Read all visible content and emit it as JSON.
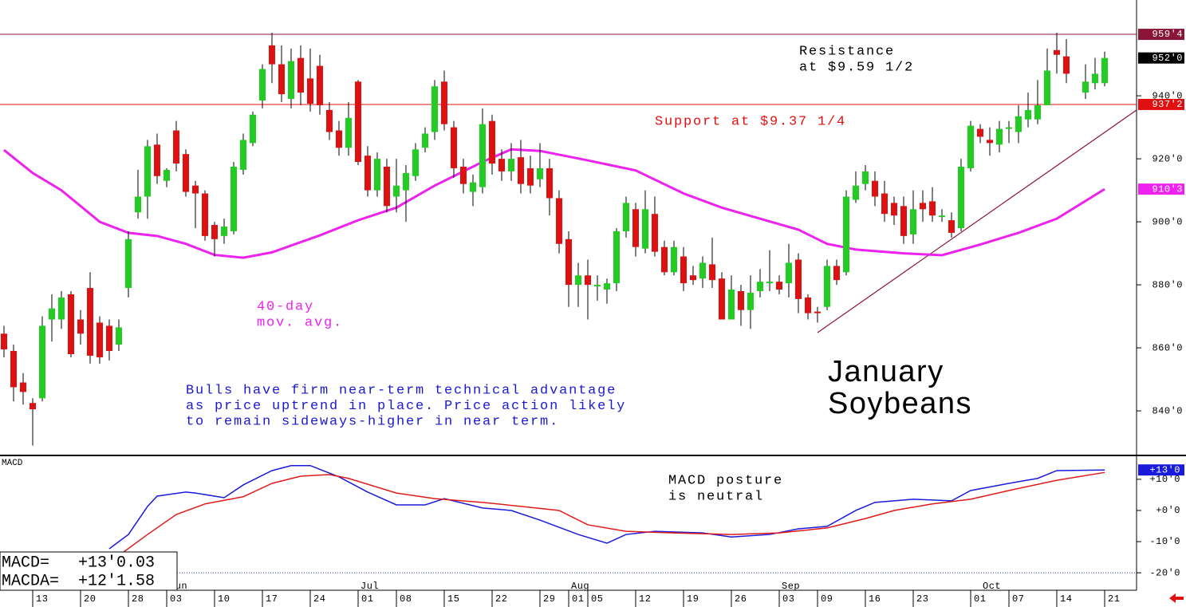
{
  "chart_data": [
    {
      "type": "candlestick",
      "categories": [
        null,
        null,
        null,
        "13",
        null,
        null,
        null,
        null,
        "20",
        null,
        null,
        null,
        null,
        "28",
        null,
        null,
        null,
        "03",
        null,
        null,
        null,
        null,
        "10",
        null,
        null,
        null,
        null,
        "17",
        null,
        null,
        null,
        null,
        "24",
        null,
        null,
        null,
        null,
        "01",
        null,
        null,
        null,
        "08",
        null,
        null,
        null,
        null,
        "15",
        null,
        null,
        null,
        null,
        "22",
        null,
        null,
        null,
        null,
        "29",
        null,
        null,
        "01",
        null,
        "05",
        null,
        null,
        null,
        null,
        "12",
        null,
        null,
        null,
        null,
        "19",
        null,
        null,
        null,
        null,
        "26",
        null,
        null,
        null,
        null,
        "03",
        null,
        null,
        null,
        "09",
        null,
        null,
        null,
        null,
        "16",
        null,
        null,
        null,
        null,
        "23",
        null,
        null,
        null,
        null,
        null,
        "01",
        null,
        null,
        null,
        "07",
        null,
        null,
        null,
        null,
        "14",
        null,
        null,
        null,
        null,
        "21"
      ],
      "months": [
        null,
        null,
        null,
        null,
        null,
        null,
        null,
        null,
        null,
        null,
        null,
        null,
        null,
        null,
        null,
        null,
        null,
        "Jun",
        null,
        null,
        null,
        null,
        null,
        null,
        null,
        null,
        null,
        null,
        null,
        null,
        null,
        null,
        null,
        null,
        null,
        null,
        null,
        "Jul",
        null,
        null,
        null,
        null,
        null,
        null,
        null,
        null,
        null,
        null,
        null,
        null,
        null,
        null,
        null,
        null,
        null,
        null,
        null,
        null,
        null,
        "Aug",
        null,
        null,
        null,
        null,
        null,
        null,
        null,
        null,
        null,
        null,
        null,
        null,
        null,
        null,
        null,
        null,
        null,
        null,
        null,
        null,
        null,
        "Sep",
        null,
        null,
        null,
        null,
        null,
        null,
        null,
        null,
        null,
        null,
        null,
        null,
        null,
        null,
        null,
        null,
        null,
        null,
        null,
        null,
        "Oct",
        null,
        null,
        null,
        null,
        null,
        null,
        null,
        null,
        null,
        null,
        null,
        null,
        null,
        null
      ],
      "open": [
        864.5,
        859,
        849,
        842.5,
        844,
        869,
        869,
        877,
        869,
        879,
        868,
        867,
        861,
        879,
        903,
        908,
        924.5,
        913,
        929,
        921.5,
        911.5,
        909,
        899,
        895.5,
        897,
        916.5,
        925,
        938.5,
        956,
        950,
        939,
        952,
        945.5,
        949.5,
        935.5,
        929,
        923.5,
        944.5,
        921,
        910,
        917.5,
        908,
        910,
        914.5,
        923.5,
        928.5,
        944.5,
        930,
        917.5,
        909.5,
        911,
        932,
        920,
        916,
        920.5,
        917,
        913.5,
        917,
        907.5,
        894.5,
        880,
        883,
        879.5,
        878.5,
        880.5,
        897,
        904,
        891.5,
        902.5,
        892,
        884,
        889,
        883,
        882,
        886.5,
        882,
        869,
        878,
        872,
        878,
        880.5,
        881,
        880.5,
        888,
        876,
        871.5,
        873,
        886,
        884,
        907,
        912,
        913,
        909,
        906,
        905,
        896,
        906,
        906.5,
        901.5,
        900.5,
        898,
        917,
        929.5,
        926,
        924.5,
        929.5,
        928.5,
        932.5,
        932.5,
        937,
        954.5,
        952.5,
        null,
        941,
        944,
        944
      ],
      "high": [
        867,
        861,
        852,
        844,
        870,
        877,
        878,
        878,
        872,
        884,
        870,
        869,
        869,
        897,
        916.5,
        926,
        928,
        917,
        932,
        923,
        913,
        910,
        900,
        901,
        919,
        928,
        935,
        950,
        960,
        956,
        955,
        956,
        955,
        953,
        938,
        932,
        938,
        945,
        924,
        922,
        920,
        920,
        918,
        925,
        930,
        945,
        948,
        932,
        920,
        915,
        936,
        934,
        923,
        925,
        926,
        921,
        925,
        920,
        910,
        897,
        887,
        888,
        883,
        882,
        898,
        908,
        906,
        910,
        908,
        894,
        894,
        892,
        886,
        889,
        895,
        884,
        883,
        880,
        883,
        885,
        891,
        883,
        893,
        890,
        877,
        873,
        888,
        888,
        910,
        916,
        918,
        916,
        913,
        908,
        908,
        910,
        910,
        911,
        904,
        903,
        920,
        932,
        931,
        930,
        932,
        932,
        937,
        941,
        945,
        955,
        960,
        958,
        null,
        950,
        952,
        954
      ],
      "low": [
        857,
        843,
        842,
        829,
        843,
        862,
        866,
        857,
        861,
        855,
        855,
        856,
        859,
        876,
        901,
        901,
        912,
        911,
        916,
        908,
        898,
        894,
        889,
        893,
        896,
        915,
        924,
        936,
        944,
        938,
        936,
        937,
        935,
        934,
        926,
        921,
        921,
        918,
        908,
        908,
        903,
        903,
        900,
        913,
        922,
        926,
        929,
        914,
        909,
        905,
        909,
        915,
        913,
        913,
        909,
        909,
        911,
        902,
        890,
        873,
        873,
        869,
        875,
        874,
        878,
        895,
        889,
        890,
        889,
        883,
        883,
        878,
        880,
        879,
        879,
        869,
        869,
        867,
        866,
        876,
        878,
        877,
        876,
        871,
        869,
        868,
        872,
        880,
        883,
        906,
        910,
        905,
        900,
        899,
        893,
        893,
        900,
        900,
        900,
        895,
        897,
        916,
        925,
        921,
        922,
        925,
        925,
        930,
        931,
        937,
        947,
        944,
        null,
        939,
        942,
        943
      ],
      "close": [
        859.5,
        847.5,
        846,
        840.5,
        867,
        872.5,
        876,
        858,
        864.5,
        857.5,
        857,
        859,
        866.5,
        894.5,
        908,
        924,
        914.5,
        916.5,
        918.5,
        909.5,
        909,
        895.5,
        894.5,
        898.5,
        917.5,
        926,
        934,
        948.5,
        950,
        940.5,
        951,
        941,
        937.5,
        937,
        928.5,
        923.5,
        933,
        919,
        910,
        920,
        905,
        911.5,
        915.5,
        923,
        928,
        943,
        931,
        917,
        912,
        912.5,
        931,
        918.5,
        916,
        920,
        912,
        911.5,
        917,
        907.5,
        893,
        880,
        883,
        880,
        880,
        880.5,
        897,
        906,
        892,
        904,
        890.5,
        884,
        892,
        880.5,
        881.5,
        887,
        881.5,
        869,
        878.5,
        872,
        877.5,
        881,
        881,
        878.5,
        887,
        875.5,
        871,
        871,
        886,
        881.5,
        908,
        911.5,
        916,
        908,
        902.5,
        902,
        895.5,
        904,
        904,
        902,
        902,
        896.5,
        917.5,
        930.5,
        927,
        925,
        929.5,
        930,
        933.5,
        935.5,
        937,
        948,
        953,
        947,
        null,
        944.5,
        947,
        952
      ],
      "up_color": "#22cc22",
      "down_color": "#dd1111",
      "ylim": [
        826.1,
        970.4
      ],
      "yticks": [
        {
          "value": 840,
          "label": "840'0"
        },
        {
          "value": 860,
          "label": "860'0"
        },
        {
          "value": 880,
          "label": "880'0"
        },
        {
          "value": 900,
          "label": "900'0"
        },
        {
          "value": 920,
          "label": "920'0"
        },
        {
          "value": 940,
          "label": "940'0"
        }
      ],
      "moving_average": {
        "label_lines": [
          "40-day",
          "mov. avg."
        ],
        "color": "#ee22ee",
        "x": [
          0,
          3,
          6,
          10,
          13,
          16,
          19,
          22,
          25,
          28,
          33,
          37,
          41,
          45,
          50,
          53,
          56,
          61,
          66,
          71,
          75,
          79,
          83,
          86,
          89,
          94,
          98,
          102,
          106,
          110,
          115
        ],
        "values": [
          922.8,
          915.5,
          910,
          900,
          896.5,
          895.5,
          893,
          889.5,
          888.6,
          890.3,
          895.7,
          900.5,
          904.5,
          911.5,
          919,
          923,
          922.5,
          919.5,
          916.3,
          909,
          904.5,
          901,
          897.5,
          893,
          891.2,
          890,
          889.4,
          892.8,
          896.5,
          901,
          910.375
        ],
        "last_label": {
          "value": 910.375,
          "label": "910'3"
        }
      },
      "resistance": {
        "value": 959.5,
        "label": "959'4",
        "color": "#8b1538",
        "text": [
          "Resistance",
          "at $9.59 1/2"
        ]
      },
      "support": {
        "value": 937.25,
        "label": "937'2",
        "color": "#e01010",
        "text": [
          "Support at $9.37 1/4"
        ]
      },
      "last_price": {
        "value": 952,
        "label": "952'0"
      },
      "note": [
        "Bulls have firm near-term technical advantage",
        "as price uptrend in place. Price action likely",
        "to remain sideways-higher in near term."
      ],
      "title": [
        "January",
        "Soybeans"
      ]
    },
    {
      "type": "line",
      "title": "MACD",
      "series": [
        {
          "name": "MACD",
          "color": "#1a1add",
          "x": [
            11,
            13,
            15,
            16,
            19,
            20,
            23,
            25,
            28,
            30,
            32,
            35,
            38,
            41,
            44,
            46,
            50,
            53,
            56,
            60,
            63,
            65,
            68,
            73,
            76,
            80,
            83,
            86,
            89,
            91,
            95,
            99,
            101,
            105,
            108,
            110,
            115
          ],
          "values": [
            -12.3,
            -7.7,
            1.3,
            4.6,
            5.9,
            5.6,
            4.1,
            8.2,
            12.8,
            14.4,
            14.4,
            10.8,
            5.9,
            1.8,
            1.8,
            3.8,
            0.8,
            0,
            -3.1,
            -7.7,
            -10.5,
            -7.7,
            -6.7,
            -7.2,
            -8.5,
            -7.7,
            -5.9,
            -5.1,
            0,
            2.6,
            3.6,
            3.1,
            6.4,
            8.7,
            10.3,
            12.8,
            13
          ]
        },
        {
          "name": "MACDA",
          "color": "#e01a1a",
          "x": [
            11,
            15,
            18,
            21,
            25,
            28,
            31,
            34,
            36,
            41,
            45,
            50,
            55,
            58,
            61,
            65,
            70,
            76,
            81,
            86,
            90,
            93,
            97,
            101,
            105,
            110,
            115
          ],
          "values": [
            -16.7,
            -7.7,
            -1.3,
            2.1,
            4.4,
            8.7,
            11,
            11.5,
            10.3,
            5.6,
            3.8,
            2.6,
            1,
            0,
            -4.6,
            -6.7,
            -7.2,
            -7.7,
            -7.2,
            -5.6,
            -2.6,
            0,
            2.1,
            3.6,
            6.4,
            9.7,
            12.2
          ]
        }
      ],
      "ylim": [
        -25.6,
        17.4
      ],
      "yticks": [
        {
          "value": -20,
          "label": "-20'0"
        },
        {
          "value": -10,
          "label": "-10'0"
        },
        {
          "value": 0,
          "label": "+0'0"
        },
        {
          "value": 10,
          "label": "+10'0"
        }
      ],
      "reference_line": -20,
      "last_label": {
        "value": 13,
        "label": "+13'0"
      },
      "annotation": [
        "MACD posture",
        "is neutral"
      ],
      "readout": [
        {
          "label": "MACD=",
          "value_label": "+13'0.03"
        },
        {
          "label": "MACDA=",
          "value_label": "+12'1.58"
        }
      ]
    }
  ]
}
